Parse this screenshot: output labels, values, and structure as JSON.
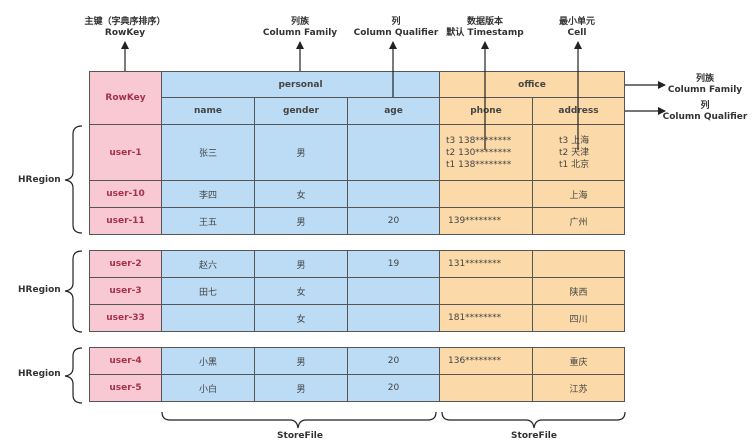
{
  "top_annotations": {
    "rowkey": [
      "主键（字典序排序）",
      "RowKey"
    ],
    "family": [
      "列族",
      "Column Family"
    ],
    "qualifier": [
      "列",
      "Column Qualifier"
    ],
    "version": [
      "数据版本",
      "默认 Timestamp"
    ],
    "cell": [
      "最小单元",
      "Cell"
    ]
  },
  "right_annotations": {
    "family": [
      "列族",
      "Column Family"
    ],
    "qualifier": [
      "列",
      "Column Qualifier"
    ]
  },
  "header": {
    "rowkey": "RowKey",
    "personal": "personal",
    "office": "office",
    "columns": [
      "name",
      "gender",
      "age",
      "phone",
      "address"
    ]
  },
  "regions": [
    {
      "label": "HRegion",
      "rows": [
        {
          "key": "user-1",
          "name": "张三",
          "gender": "男",
          "age": "",
          "phone": [
            "t3  138********",
            "t2  130********",
            "t1  138********"
          ],
          "address": [
            "t3  上海",
            "t2  天津",
            "t1  北京"
          ]
        },
        {
          "key": "user-10",
          "name": "李四",
          "gender": "女",
          "age": "",
          "phone": "",
          "address": "上海"
        },
        {
          "key": "user-11",
          "name": "王五",
          "gender": "男",
          "age": "20",
          "phone": "139********",
          "address": "广州"
        }
      ]
    },
    {
      "label": "HRegion",
      "rows": [
        {
          "key": "user-2",
          "name": "赵六",
          "gender": "男",
          "age": "19",
          "phone": "131********",
          "address": ""
        },
        {
          "key": "user-3",
          "name": "田七",
          "gender": "女",
          "age": "",
          "phone": "",
          "address": "陕西"
        },
        {
          "key": "user-33",
          "name": "",
          "gender": "女",
          "age": "",
          "phone": "181********",
          "address": "四川"
        }
      ]
    },
    {
      "label": "HRegion",
      "rows": [
        {
          "key": "user-4",
          "name": "小黑",
          "gender": "男",
          "age": "20",
          "phone": "136********",
          "address": "重庆"
        },
        {
          "key": "user-5",
          "name": "小白",
          "gender": "男",
          "age": "20",
          "phone": "",
          "address": "江苏"
        }
      ]
    }
  ],
  "storefile_label": "StoreFile",
  "colors": {
    "rowkey_bg": "#f8c9d3",
    "personal_bg": "#bcdcf5",
    "office_bg": "#fcd9a8",
    "border": "#555555"
  }
}
